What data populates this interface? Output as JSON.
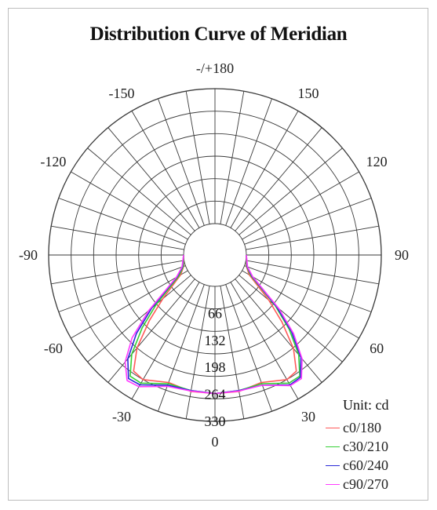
{
  "chart_data": {
    "type": "polar-line",
    "title": "Distribution Curve of Meridian",
    "unit_label": "Unit: cd",
    "angle_labels": [
      {
        "angle": 180,
        "text": "-/+180"
      },
      {
        "angle": -150,
        "text": "-150"
      },
      {
        "angle": 150,
        "text": "150"
      },
      {
        "angle": -120,
        "text": "-120"
      },
      {
        "angle": 120,
        "text": "120"
      },
      {
        "angle": -90,
        "text": "-90"
      },
      {
        "angle": 90,
        "text": "90"
      },
      {
        "angle": -60,
        "text": "-60"
      },
      {
        "angle": 60,
        "text": "60"
      },
      {
        "angle": -30,
        "text": "-30"
      },
      {
        "angle": 30,
        "text": "30"
      },
      {
        "angle": 0,
        "text": "0"
      }
    ],
    "radial_ticks": [
      66,
      132,
      198,
      264,
      330
    ],
    "radial_range": [
      0,
      330
    ],
    "angle_step": 10,
    "series": [
      {
        "name": "c0/180",
        "color": "#ff5a5a",
        "angles": [
          -90,
          -70,
          -60,
          -50,
          -45,
          -40,
          -35,
          -30,
          -20,
          -10,
          0,
          10,
          20,
          30,
          35,
          40,
          45,
          50,
          60,
          70,
          90
        ],
        "values": [
          0,
          5,
          20,
          90,
          150,
          220,
          270,
          275,
          255,
          262,
          262,
          262,
          255,
          275,
          270,
          222,
          155,
          95,
          20,
          5,
          0
        ]
      },
      {
        "name": "c30/210",
        "color": "#35d035",
        "angles": [
          -90,
          -70,
          -60,
          -50,
          -45,
          -40,
          -35,
          -30,
          -20,
          -10,
          0,
          10,
          20,
          30,
          35,
          40,
          45,
          50,
          60,
          70,
          90
        ],
        "values": [
          0,
          6,
          25,
          110,
          175,
          240,
          285,
          285,
          258,
          260,
          262,
          260,
          258,
          285,
          285,
          242,
          180,
          115,
          25,
          6,
          0
        ]
      },
      {
        "name": "c60/240",
        "color": "#2a2ad8",
        "angles": [
          -90,
          -70,
          -60,
          -50,
          -45,
          -40,
          -35,
          -30,
          -20,
          -10,
          0,
          10,
          20,
          30,
          35,
          40,
          45,
          50,
          60,
          70,
          90
        ],
        "values": [
          0,
          8,
          30,
          125,
          195,
          255,
          292,
          290,
          262,
          260,
          262,
          260,
          262,
          290,
          288,
          250,
          188,
          120,
          28,
          7,
          0
        ]
      },
      {
        "name": "c90/270",
        "color": "#ff3cff",
        "angles": [
          -90,
          -70,
          -60,
          -50,
          -45,
          -40,
          -35,
          -30,
          -20,
          -10,
          0,
          10,
          20,
          30,
          35,
          40,
          45,
          50,
          60,
          70,
          90
        ],
        "values": [
          0,
          9,
          32,
          135,
          210,
          265,
          298,
          295,
          265,
          261,
          262,
          261,
          262,
          292,
          292,
          255,
          195,
          128,
          30,
          8,
          0
        ]
      }
    ]
  }
}
